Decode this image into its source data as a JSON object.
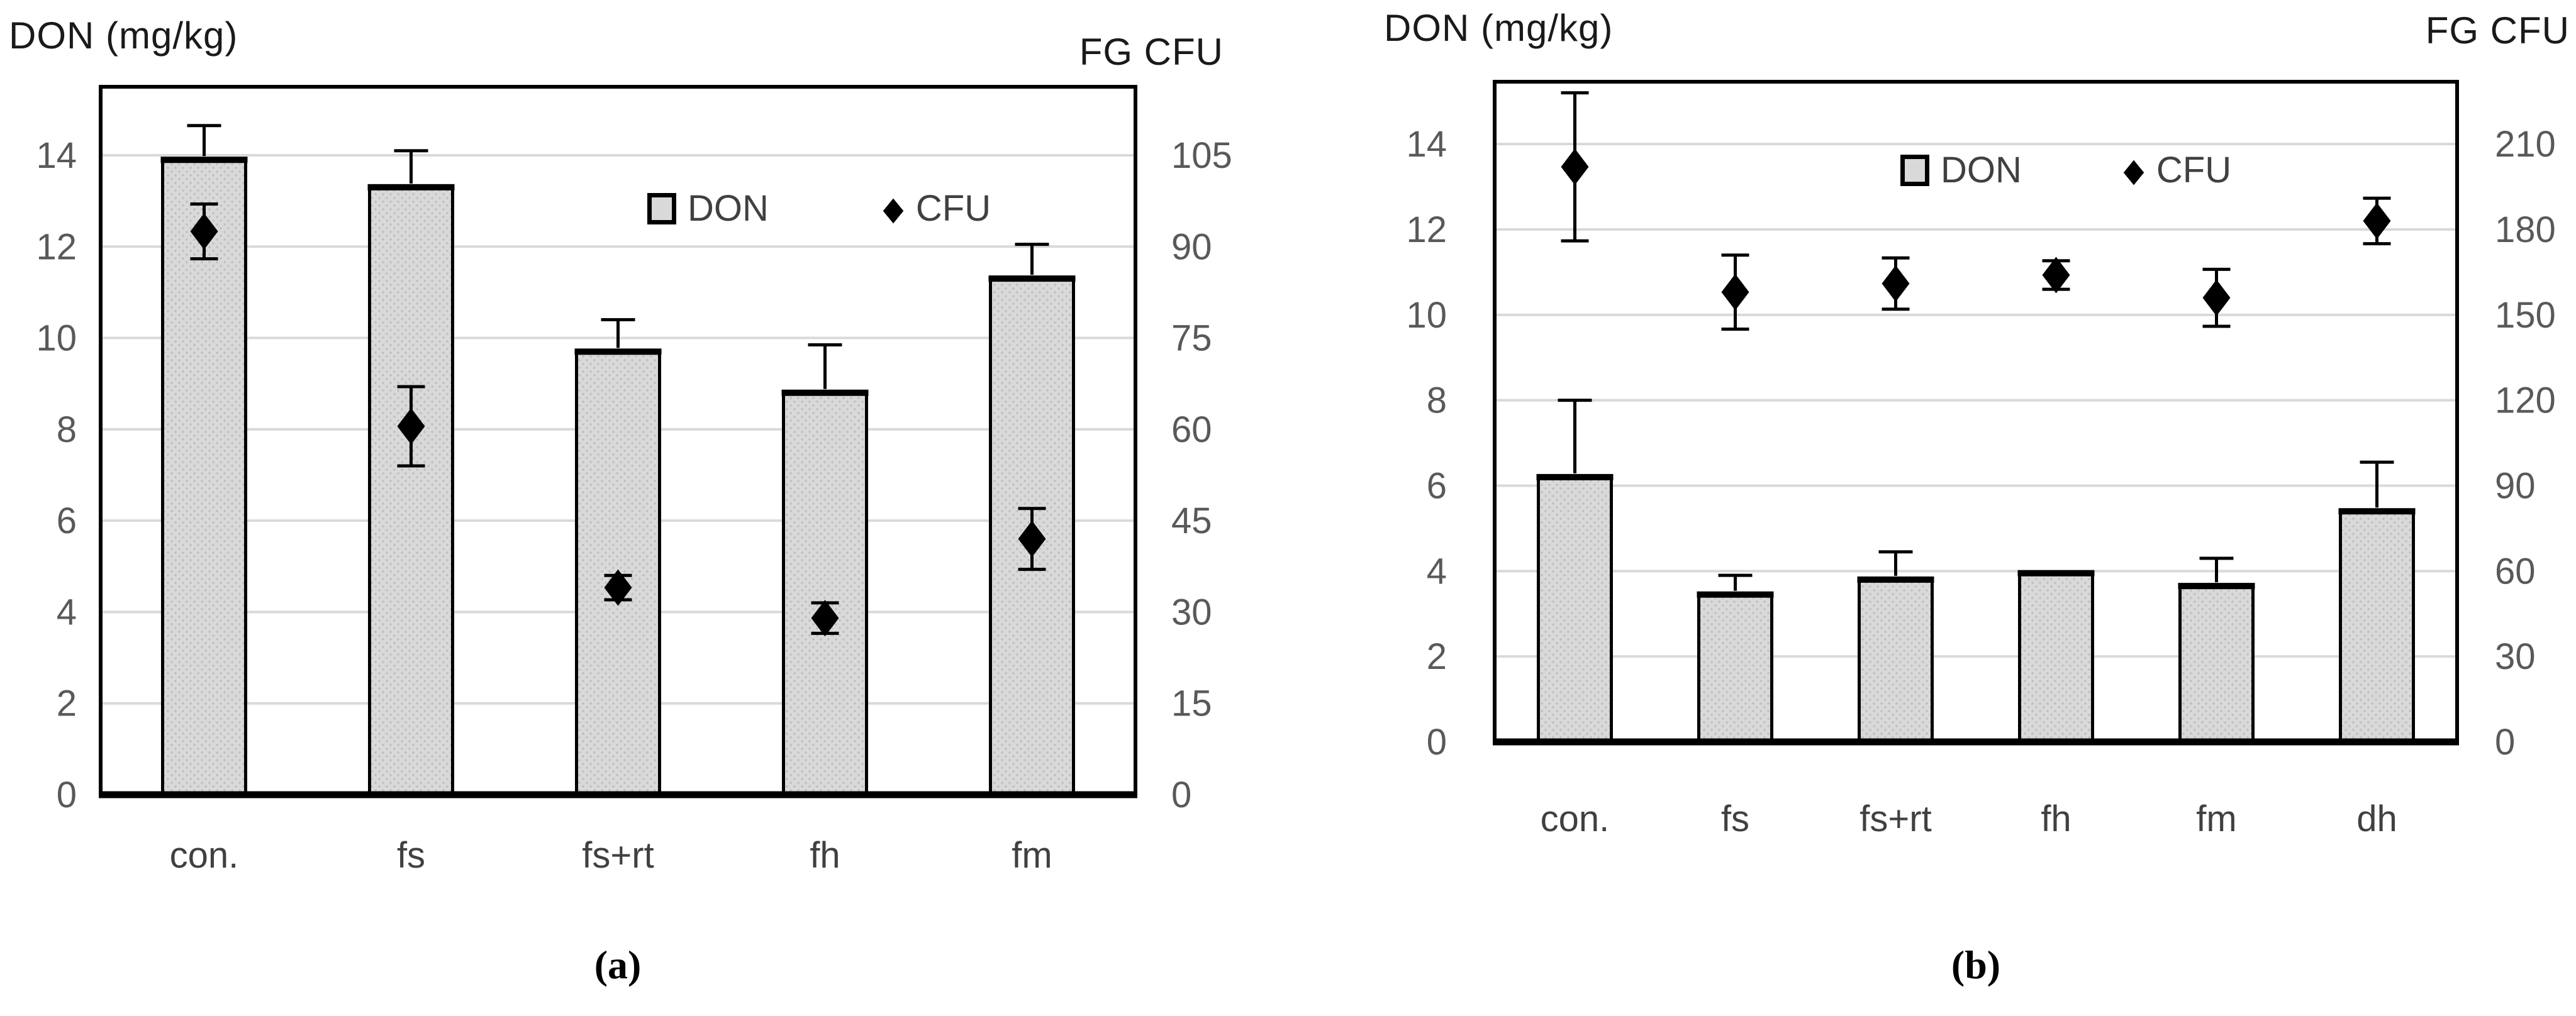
{
  "colors": {
    "background": "#ffffff",
    "bar_fill": "#d9d9d9",
    "bar_dot": "#bdbdbd",
    "bar_border": "#000000",
    "grid": "#d9d9d9",
    "tick_label": "#595959",
    "category_label": "#404040",
    "axis_title": "#1a1a1a",
    "marker": "#000000"
  },
  "chart_data": [
    {
      "panel": "a",
      "type": "bar",
      "caption": "(a)",
      "title_left": "DON (mg/kg)",
      "title_right": "FG CFU",
      "categories": [
        "con.",
        "fs",
        "fs+rt",
        "fh",
        "fm"
      ],
      "left_axis": {
        "label": "DON (mg/kg)",
        "ticks": [
          0,
          2,
          4,
          6,
          8,
          10,
          12,
          14
        ],
        "max": 15.5
      },
      "right_axis": {
        "label": "FG CFU",
        "ticks": [
          0,
          15,
          30,
          45,
          60,
          75,
          90,
          105
        ],
        "max": 116.25,
        "per_left_unit": 7.5
      },
      "legend": {
        "don": "DON",
        "cfu": "CFU"
      },
      "grid": "on",
      "series": [
        {
          "name": "DON",
          "type": "bar",
          "axis": "left",
          "unit": "mg/kg",
          "values": [
            13.9,
            13.3,
            9.7,
            8.8,
            11.3
          ],
          "errors_plus": [
            0.75,
            0.8,
            0.7,
            1.05,
            0.75
          ]
        },
        {
          "name": "CFU",
          "type": "scatter",
          "axis": "right",
          "unit": "FG CFU",
          "values": [
            92.5,
            60.5,
            34,
            29,
            42
          ],
          "errors_plus_minus": [
            4.5,
            6.5,
            2,
            2.5,
            5
          ]
        }
      ]
    },
    {
      "panel": "b",
      "type": "bar",
      "caption": "(b)",
      "title_left": "DON (mg/kg)",
      "title_right": "FG CFU",
      "categories": [
        "con.",
        "fs",
        "fs+rt",
        "fh",
        "fm",
        "dh"
      ],
      "left_axis": {
        "label": "DON (mg/kg)",
        "ticks": [
          0,
          2,
          4,
          6,
          8,
          10,
          12,
          14
        ],
        "max": 15.46
      },
      "right_axis": {
        "label": "FG CFU",
        "ticks": [
          0,
          30,
          60,
          90,
          120,
          150,
          180,
          210
        ],
        "max": 231.9,
        "per_left_unit": 15
      },
      "legend": {
        "don": "DON",
        "cfu": "CFU"
      },
      "grid": "on",
      "series": [
        {
          "name": "DON",
          "type": "bar",
          "axis": "left",
          "unit": "mg/kg",
          "values": [
            6.2,
            3.45,
            3.8,
            3.95,
            3.65,
            5.4
          ],
          "errors_plus": [
            1.8,
            0.45,
            0.65,
            0,
            0.65,
            1.15
          ]
        },
        {
          "name": "CFU",
          "type": "scatter",
          "axis": "right",
          "unit": "FG CFU",
          "values": [
            202,
            158,
            161,
            164,
            156,
            183
          ],
          "errors_plus_minus": [
            26,
            13,
            9,
            5,
            10,
            8
          ]
        }
      ]
    }
  ]
}
